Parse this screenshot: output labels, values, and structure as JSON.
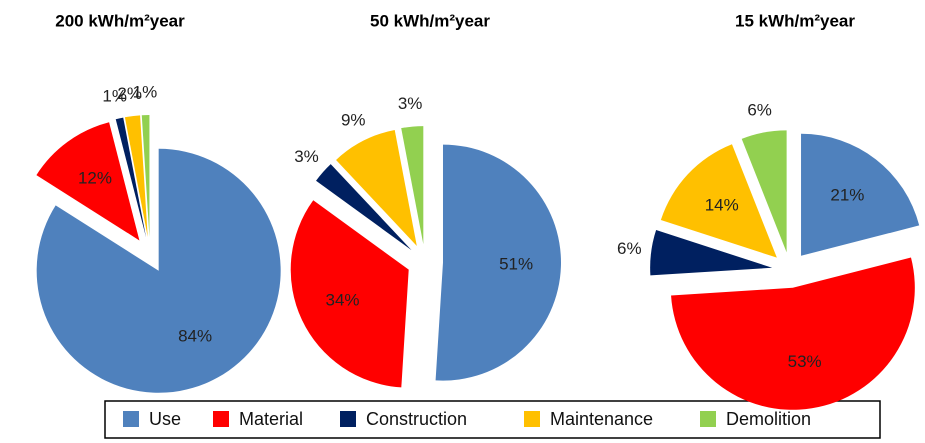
{
  "chart_data": [
    {
      "type": "pie",
      "title": "200 kWh/m²year",
      "categories": [
        "Use",
        "Material",
        "Construction",
        "Maintenance",
        "Demolition"
      ],
      "values": [
        84,
        12,
        1,
        2,
        1
      ],
      "value_labels": [
        "84%",
        "12%",
        "1%",
        "2%",
        "1%"
      ],
      "colors": [
        "#4f81bd",
        "#ff0000",
        "#002060",
        "#ffc000",
        "#92d050"
      ]
    },
    {
      "type": "pie",
      "title": "50 kWh/m²year",
      "categories": [
        "Use",
        "Material",
        "Construction",
        "Maintenance",
        "Demolition"
      ],
      "values": [
        51,
        34,
        3,
        9,
        3
      ],
      "value_labels": [
        "51%",
        "34%",
        "3%",
        "9%",
        "3%"
      ],
      "colors": [
        "#4f81bd",
        "#ff0000",
        "#002060",
        "#ffc000",
        "#92d050"
      ]
    },
    {
      "type": "pie",
      "title": "15 kWh/m²year",
      "categories": [
        "Use",
        "Material",
        "Construction",
        "Maintenance",
        "Demolition"
      ],
      "values": [
        21,
        53,
        6,
        14,
        6
      ],
      "value_labels": [
        "21%",
        "53%",
        "6%",
        "14%",
        "6%"
      ],
      "colors": [
        "#4f81bd",
        "#ff0000",
        "#002060",
        "#ffc000",
        "#92d050"
      ]
    }
  ]
}
